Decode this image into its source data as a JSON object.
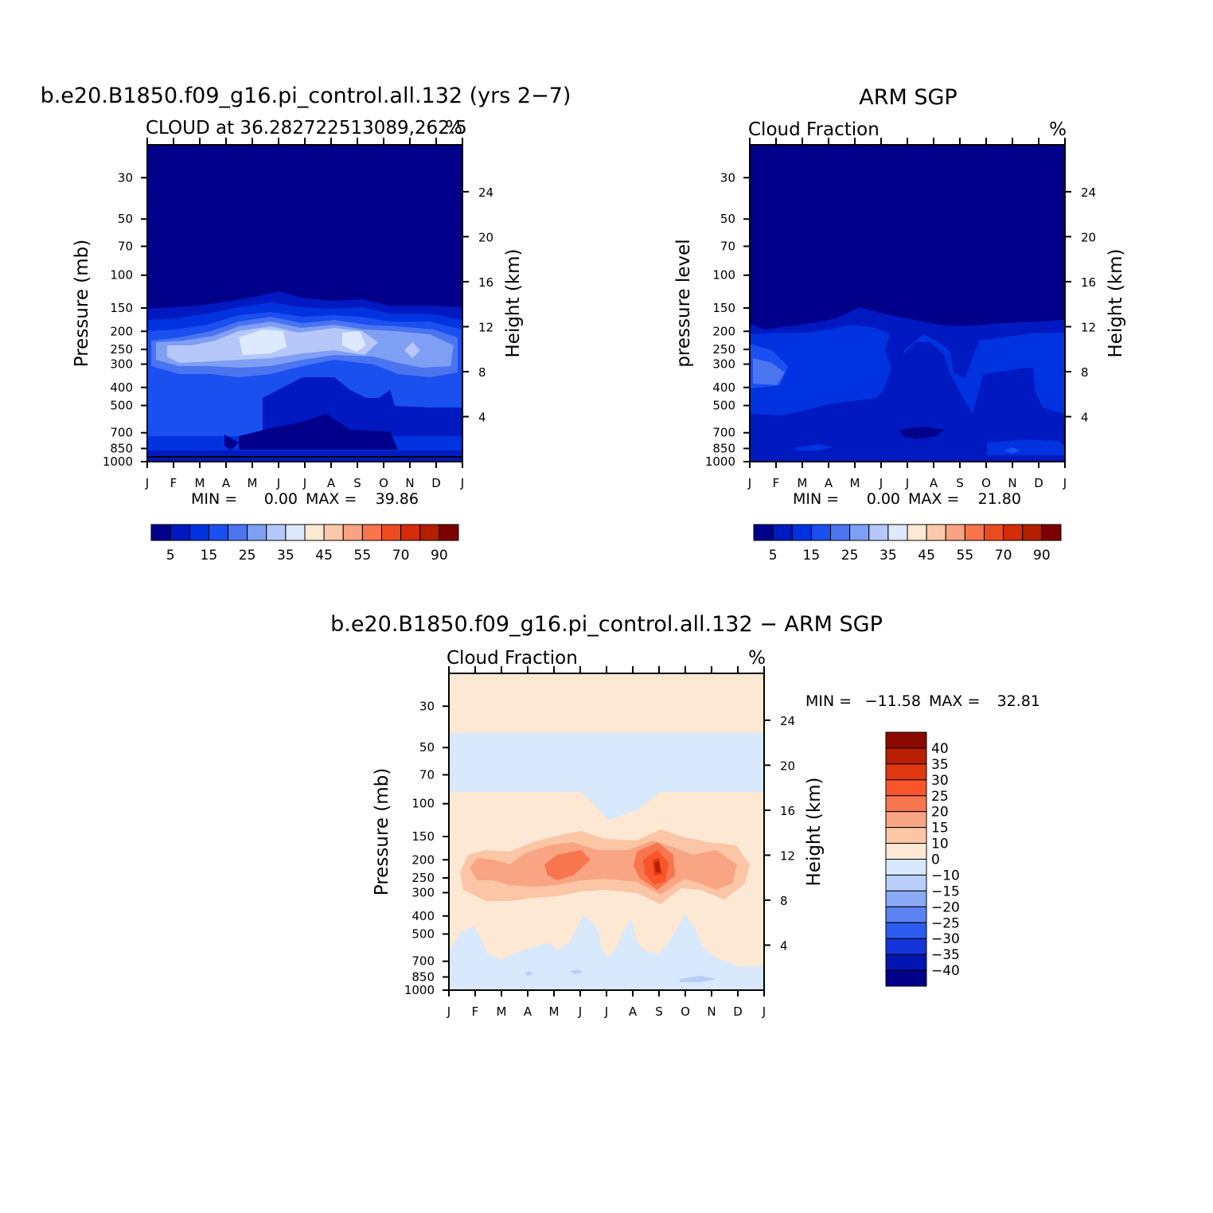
{
  "chart_data": [
    {
      "type": "heatmap",
      "id": "model",
      "title": "b.e20.B1850.f09_g16.pi_control.all.132 (yrs 2−7)",
      "subtitle_left": "CLOUD at 36.282722513089,262.5",
      "subtitle_right": "%",
      "x_ticks": [
        "J",
        "F",
        "M",
        "A",
        "M",
        "J",
        "J",
        "A",
        "S",
        "O",
        "N",
        "D",
        "J"
      ],
      "y_ticks": [
        "30",
        "50",
        "70",
        "100",
        "150",
        "200",
        "250",
        "300",
        "400",
        "500",
        "700",
        "850",
        "1000"
      ],
      "y_values": [
        30,
        50,
        70,
        100,
        150,
        200,
        250,
        300,
        400,
        500,
        700,
        850,
        1000
      ],
      "ylim": [
        20,
        1000
      ],
      "ylabel": "Pressure (mb)",
      "y2_ticks": [
        "24",
        "20",
        "16",
        "12",
        "8",
        "4"
      ],
      "y2_values": [
        24,
        20,
        16,
        12,
        8,
        4
      ],
      "y2label": "Height (km)",
      "min_label": "MIN =",
      "min_value": "0.00",
      "max_label": "MAX =",
      "max_value": "39.86",
      "max_cloud_percent_approx": {
        "J": 30,
        "F": 33,
        "M": 32,
        "A": 34,
        "M2": 38,
        "J2": 39,
        "J3": 33,
        "A2": 36,
        "S": 38,
        "O": 28,
        "N": 32,
        "D": 30
      }
    },
    {
      "type": "heatmap",
      "id": "obs",
      "title": "ARM SGP",
      "subtitle_left": "Cloud Fraction",
      "subtitle_right": "%",
      "x_ticks": [
        "J",
        "F",
        "M",
        "A",
        "M",
        "J",
        "J",
        "A",
        "S",
        "O",
        "N",
        "D",
        "J"
      ],
      "y_ticks": [
        "30",
        "50",
        "70",
        "100",
        "150",
        "200",
        "250",
        "300",
        "400",
        "500",
        "700",
        "850",
        "1000"
      ],
      "y_values": [
        30,
        50,
        70,
        100,
        150,
        200,
        250,
        300,
        400,
        500,
        700,
        850,
        1000
      ],
      "ylim": [
        20,
        1000
      ],
      "ylabel": "pressure level",
      "y2_ticks": [
        "24",
        "20",
        "16",
        "12",
        "8",
        "4"
      ],
      "y2_values": [
        24,
        20,
        16,
        12,
        8,
        4
      ],
      "y2label": "Height (km)",
      "min_label": "MIN =",
      "min_value": "0.00",
      "max_label": "MAX =",
      "max_value": "21.80"
    },
    {
      "type": "heatmap",
      "id": "diff",
      "title": "b.e20.B1850.f09_g16.pi_control.all.132 − ARM SGP",
      "subtitle_left": "Cloud Fraction",
      "subtitle_right": "%",
      "x_ticks": [
        "J",
        "F",
        "M",
        "A",
        "M",
        "J",
        "J",
        "A",
        "S",
        "O",
        "N",
        "D",
        "J"
      ],
      "y_ticks": [
        "30",
        "50",
        "70",
        "100",
        "150",
        "200",
        "250",
        "300",
        "400",
        "500",
        "700",
        "850",
        "1000"
      ],
      "y_values": [
        30,
        50,
        70,
        100,
        150,
        200,
        250,
        300,
        400,
        500,
        700,
        850,
        1000
      ],
      "ylim": [
        20,
        1000
      ],
      "ylabel": "Pressure (mb)",
      "y2_ticks": [
        "24",
        "20",
        "16",
        "12",
        "8",
        "4"
      ],
      "y2_values": [
        24,
        20,
        16,
        12,
        8,
        4
      ],
      "y2label": "Height (km)",
      "min_label": "MIN =",
      "min_value": "−11.58",
      "max_label": "MAX =",
      "max_value": "32.81"
    }
  ],
  "colorbar_seq": {
    "labels": [
      "5",
      "15",
      "25",
      "35",
      "45",
      "55",
      "70",
      "90"
    ],
    "colors": [
      "#00008b",
      "#0019c0",
      "#0033e0",
      "#1a4ff0",
      "#4a74f0",
      "#7f9ff5",
      "#b5c8f9",
      "#dde9fd",
      "#fde8d4",
      "#fbc8ac",
      "#f9a382",
      "#f8744a",
      "#ec4a1f",
      "#d52c0b",
      "#b41f00",
      "#7d0000"
    ]
  },
  "colorbar_diff": {
    "labels": [
      "40",
      "35",
      "30",
      "25",
      "20",
      "15",
      "10",
      "0",
      "−10",
      "−15",
      "−20",
      "−25",
      "−30",
      "−35",
      "−40"
    ],
    "colors": [
      "#8b0a00",
      "#b81f00",
      "#e0380f",
      "#f8562a",
      "#f8764e",
      "#f9a482",
      "#fbc6a6",
      "#fde8d4",
      "#d8e8fd",
      "#b7cdfa",
      "#8aabf5",
      "#5b82f0",
      "#2e5cf0",
      "#1234d8",
      "#0016b0",
      "#00008b"
    ]
  },
  "colors": {
    "model_levels": [
      "#00008b",
      "#0019c0",
      "#0033e0",
      "#1a4ff0",
      "#4a74f0",
      "#7f9ff5",
      "#b5c8f9",
      "#dde9fd"
    ],
    "diff_pos": [
      "#fde8d4",
      "#fbc6a6",
      "#f9a482",
      "#f8764e",
      "#f8562a",
      "#e0380f"
    ],
    "diff_neg": [
      "#d8e8fd",
      "#b7cdfa"
    ]
  }
}
